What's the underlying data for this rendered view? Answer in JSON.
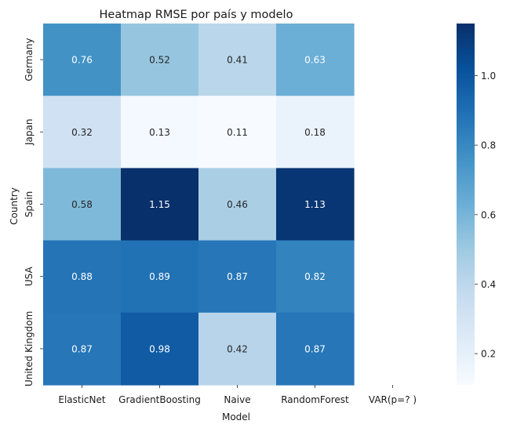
{
  "chart_data": {
    "type": "heatmap",
    "title": "Heatmap RMSE por país y modelo",
    "xlabel": "Model",
    "ylabel": "Country",
    "columns": [
      "ElasticNet",
      "GradientBoosting",
      "Naive",
      "RandomForest",
      "VAR(p=? )"
    ],
    "rows": [
      "Germany",
      "Japan",
      "Spain",
      "USA",
      "United Kingdom"
    ],
    "values": [
      [
        0.76,
        0.52,
        0.41,
        0.63,
        null
      ],
      [
        0.32,
        0.13,
        0.11,
        0.18,
        null
      ],
      [
        0.58,
        1.15,
        0.46,
        1.13,
        null
      ],
      [
        0.88,
        0.89,
        0.87,
        0.82,
        null
      ],
      [
        0.87,
        0.98,
        0.42,
        0.87,
        null
      ]
    ],
    "colorbar": {
      "min": 0.11,
      "max": 1.15,
      "ticks": [
        0.2,
        0.4,
        0.6,
        0.8,
        1.0
      ],
      "tick_labels": [
        "0.2",
        "0.4",
        "0.6",
        "0.8",
        "1.0"
      ],
      "colormap": "Blues",
      "colormap_stops": [
        "#f7fbff",
        "#deebf7",
        "#c6dbef",
        "#9ecae1",
        "#6baed6",
        "#4292c6",
        "#2171b5",
        "#08519c",
        "#08306b"
      ]
    },
    "annotation_format": "0.00",
    "grid": false,
    "legend": "colorbar-right"
  }
}
